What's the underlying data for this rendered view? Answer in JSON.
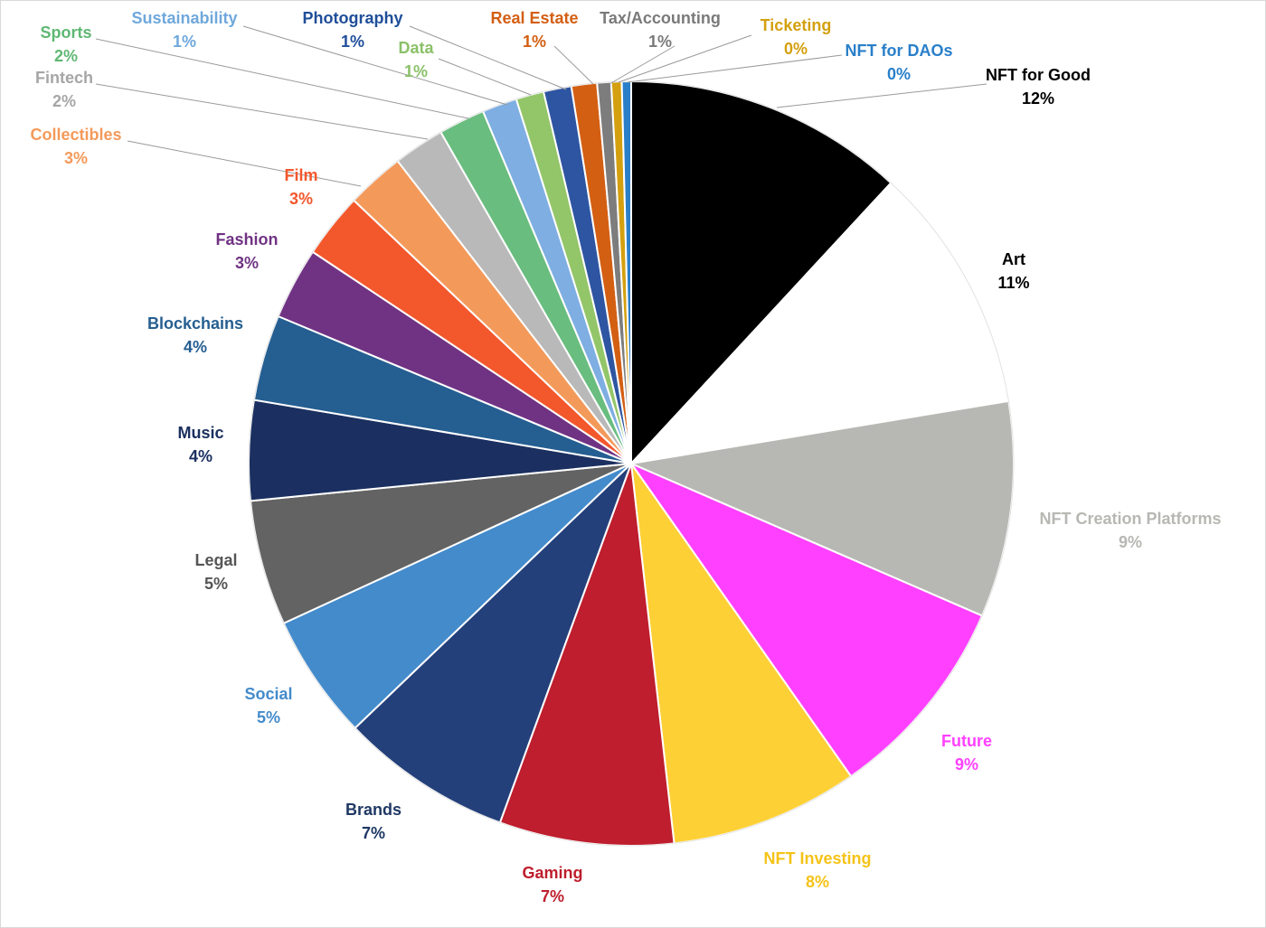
{
  "chart_data": {
    "type": "pie",
    "title": "",
    "start_angle_deg": 0,
    "direction": "clockwise",
    "slices": [
      {
        "name": "NFT for Good",
        "pct_label": "12%",
        "value": 12.1,
        "color": "#000000",
        "label_color": "#000000",
        "label_anchor": "middle"
      },
      {
        "name": "Art",
        "pct_label": "11%",
        "value": 10.7,
        "color": "#ffffff",
        "label_color": "#000000",
        "label_anchor": "middle"
      },
      {
        "name": "NFT Creation Platforms",
        "pct_label": "9%",
        "value": 9.3,
        "color": "#b7b8b3",
        "label_color": "#b7b8b3",
        "label_anchor": "middle"
      },
      {
        "name": "Future",
        "pct_label": "9%",
        "value": 8.9,
        "color": "#ff40ff",
        "label_color": "#ff40ff",
        "label_anchor": "middle"
      },
      {
        "name": "NFT Investing",
        "pct_label": "8%",
        "value": 8.1,
        "color": "#fdd036",
        "label_color": "#f5c318",
        "label_anchor": "middle"
      },
      {
        "name": "Gaming",
        "pct_label": "7%",
        "value": 7.5,
        "color": "#be1e2d",
        "label_color": "#be1e2d",
        "label_anchor": "middle"
      },
      {
        "name": "Brands",
        "pct_label": "7%",
        "value": 7.4,
        "color": "#24407a",
        "label_color": "#1f3864",
        "label_anchor": "middle"
      },
      {
        "name": "Social",
        "pct_label": "5%",
        "value": 5.4,
        "color": "#448bcb",
        "label_color": "#448bcb",
        "label_anchor": "middle"
      },
      {
        "name": "Legal",
        "pct_label": "5%",
        "value": 5.4,
        "color": "#636363",
        "label_color": "#555555",
        "label_anchor": "middle"
      },
      {
        "name": "Music",
        "pct_label": "4%",
        "value": 4.3,
        "color": "#1b3060",
        "label_color": "#1b3060",
        "label_anchor": "middle"
      },
      {
        "name": "Blockchains",
        "pct_label": "4%",
        "value": 3.7,
        "color": "#255e91",
        "label_color": "#255e91",
        "label_anchor": "middle"
      },
      {
        "name": "Fashion",
        "pct_label": "3%",
        "value": 3.1,
        "color": "#703383",
        "label_color": "#703383",
        "label_anchor": "middle"
      },
      {
        "name": "Film",
        "pct_label": "3%",
        "value": 2.8,
        "color": "#f3572c",
        "label_color": "#f3572c",
        "label_anchor": "middle"
      },
      {
        "name": "Collectibles",
        "pct_label": "3%",
        "value": 2.5,
        "color": "#f39a5b",
        "label_color": "#f39a5b",
        "label_anchor": "middle"
      },
      {
        "name": "Fintech",
        "pct_label": "2%",
        "value": 2.2,
        "color": "#b9b9b9",
        "label_color": "#a6a6a6",
        "label_anchor": "middle"
      },
      {
        "name": "Sports",
        "pct_label": "2%",
        "value": 2.0,
        "color": "#69bd7f",
        "label_color": "#5fb873",
        "label_anchor": "middle"
      },
      {
        "name": "Sustainability",
        "pct_label": "1%",
        "value": 1.5,
        "color": "#7eaee2",
        "label_color": "#6fa8dc",
        "label_anchor": "middle"
      },
      {
        "name": "Data",
        "pct_label": "1%",
        "value": 1.2,
        "color": "#93c569",
        "label_color": "#8bc169",
        "label_anchor": "middle"
      },
      {
        "name": "Photography",
        "pct_label": "1%",
        "value": 1.2,
        "color": "#2e55a1",
        "label_color": "#1f4e99",
        "label_anchor": "middle"
      },
      {
        "name": "Real Estate",
        "pct_label": "1%",
        "value": 1.1,
        "color": "#d35f13",
        "label_color": "#d35f13",
        "label_anchor": "middle"
      },
      {
        "name": "Tax/Accounting",
        "pct_label": "1%",
        "value": 0.6,
        "color": "#7d7d7d",
        "label_color": "#7a7a7a",
        "label_anchor": "middle"
      },
      {
        "name": "Ticketing",
        "pct_label": "0%",
        "value": 0.45,
        "color": "#d4a010",
        "label_color": "#d4a010",
        "label_anchor": "middle"
      },
      {
        "name": "NFT for DAOs",
        "pct_label": "0%",
        "value": 0.4,
        "color": "#2a7fc9",
        "label_color": "#2a7fc9",
        "label_anchor": "middle"
      }
    ]
  }
}
